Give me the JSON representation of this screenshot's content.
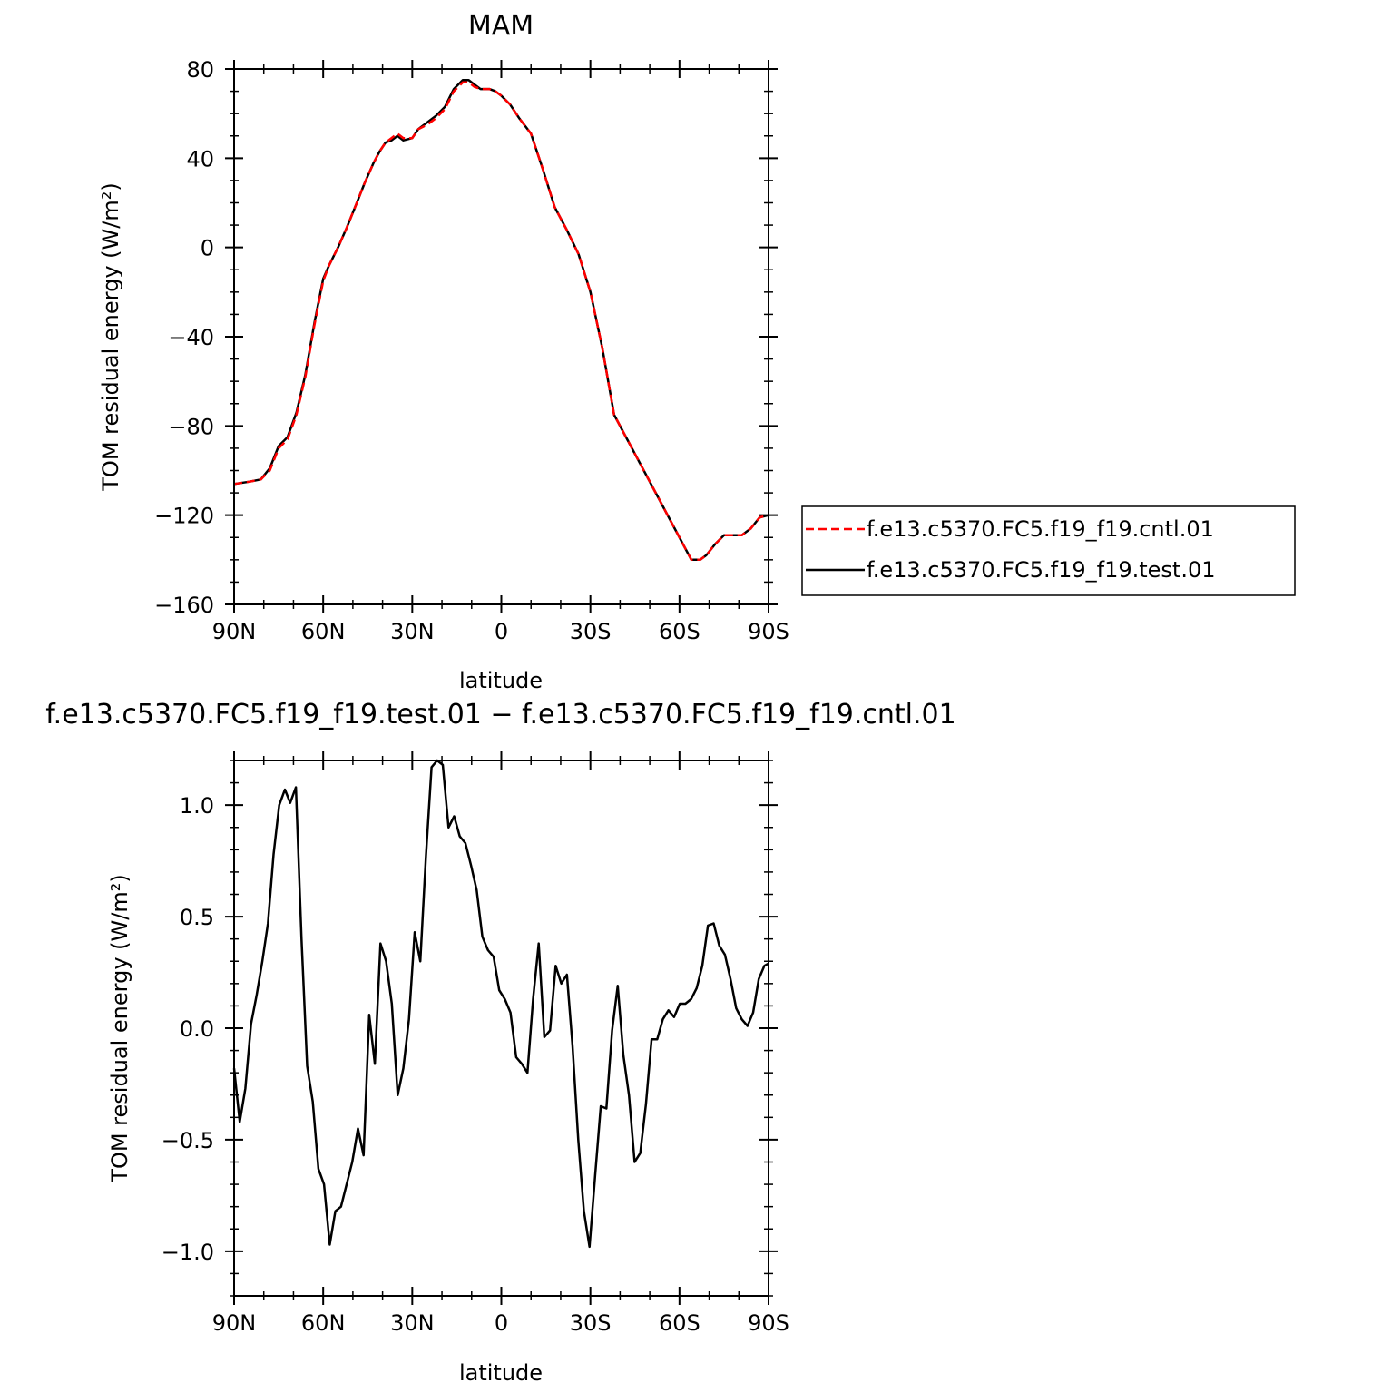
{
  "chart_data": [
    {
      "type": "line",
      "title": "MAM",
      "xlabel": "latitude",
      "ylabel": "TOM residual energy (W/m²)",
      "x_tick_labels": [
        "90N",
        "60N",
        "30N",
        "0",
        "30S",
        "60S",
        "90S"
      ],
      "y_tick_labels": [
        "80",
        "40",
        "0",
        "−40",
        "−80",
        "−120",
        "−160"
      ],
      "x_ticks": [
        90,
        60,
        30,
        0,
        -30,
        -60,
        -90
      ],
      "y_ticks": [
        80,
        40,
        0,
        -40,
        -80,
        -120,
        -160
      ],
      "xlim": [
        90,
        -90
      ],
      "ylim": [
        -160,
        80
      ],
      "legend_position": "right",
      "series": [
        {
          "name": "f.e13.c5370.FC5.f19_f19.cntl.01",
          "color": "#ff0000",
          "dash": "dashed",
          "x": [
            90,
            85,
            81,
            78,
            75,
            72,
            69,
            66,
            63,
            60,
            58,
            55,
            52,
            49,
            46,
            43,
            41,
            39,
            37,
            35,
            33,
            30,
            28,
            25,
            22,
            19,
            16,
            13,
            11,
            9,
            7,
            4,
            2,
            0,
            -3,
            -6,
            -10,
            -14,
            -18,
            -22,
            -26,
            -30,
            -34,
            -38,
            -42,
            -46,
            -52,
            -58,
            -64,
            -67,
            -69,
            -72,
            -75,
            -78,
            -81,
            -84,
            -87,
            -90
          ],
          "y": [
            -106,
            -105,
            -104,
            -100,
            -90,
            -86,
            -75,
            -58,
            -35,
            -15,
            -8,
            0,
            9,
            19,
            29,
            38,
            43,
            47,
            49,
            51,
            49,
            49,
            53,
            55,
            58,
            62,
            70,
            74,
            74,
            72,
            71,
            71,
            70,
            68,
            64,
            58,
            51,
            35,
            18,
            8,
            -3,
            -20,
            -45,
            -75,
            -85,
            -95,
            -110,
            -125,
            -140,
            -140,
            -138,
            -133,
            -129,
            -129,
            -129,
            -126,
            -121,
            -120
          ]
        },
        {
          "name": "f.e13.c5370.FC5.f19_f19.test.01",
          "color": "#000000",
          "dash": "solid",
          "x": [
            90,
            85,
            81,
            78,
            75,
            72,
            69,
            66,
            63,
            60,
            58,
            55,
            52,
            49,
            46,
            43,
            41,
            39,
            37,
            35,
            33,
            30,
            28,
            25,
            22,
            19,
            16,
            13,
            11,
            9,
            7,
            4,
            2,
            0,
            -3,
            -6,
            -10,
            -14,
            -18,
            -22,
            -26,
            -30,
            -34,
            -38,
            -42,
            -46,
            -52,
            -58,
            -64,
            -67,
            -69,
            -72,
            -75,
            -78,
            -81,
            -84,
            -87,
            -90
          ],
          "y": [
            -106,
            -105,
            -104,
            -99,
            -89,
            -85,
            -74,
            -57,
            -34,
            -14,
            -8,
            0,
            9,
            19,
            29,
            38,
            43,
            47,
            48,
            50,
            48,
            49,
            53,
            56,
            59,
            63,
            71,
            75,
            75,
            73,
            71,
            71,
            70,
            68,
            64,
            58,
            51,
            35,
            18,
            8,
            -3,
            -20,
            -45,
            -75,
            -85,
            -95,
            -110,
            -125,
            -140,
            -140,
            -138,
            -133,
            -129,
            -129,
            -129,
            -126,
            -121,
            -120
          ]
        }
      ]
    },
    {
      "type": "line",
      "title": "f.e13.c5370.FC5.f19_f19.test.01 − f.e13.c5370.FC5.f19_f19.cntl.01",
      "xlabel": "latitude",
      "ylabel": "TOM residual energy (W/m²)",
      "x_tick_labels": [
        "90N",
        "60N",
        "30N",
        "0",
        "30S",
        "60S",
        "90S"
      ],
      "y_tick_labels": [
        "1.0",
        "0.5",
        "0.0",
        "−0.5",
        "−1.0"
      ],
      "x_ticks": [
        90,
        60,
        30,
        0,
        -30,
        -60,
        -90
      ],
      "y_ticks": [
        1.0,
        0.5,
        0.0,
        -0.5,
        -1.0
      ],
      "xlim": [
        90,
        -90
      ],
      "ylim": [
        -1.2,
        1.2
      ],
      "series": [
        {
          "color": "#000000",
          "dash": "solid",
          "x": [
            90,
            88.1,
            86.2,
            84.3,
            82.4,
            80.5,
            78.6,
            76.7,
            74.8,
            72.9,
            71.1,
            69.2,
            67.3,
            65.4,
            63.5,
            61.6,
            59.7,
            57.8,
            55.9,
            54.0,
            52.1,
            50.2,
            48.3,
            46.4,
            44.5,
            42.6,
            40.7,
            38.8,
            36.9,
            34.9,
            33.0,
            31.1,
            29.2,
            27.3,
            25.4,
            23.5,
            21.6,
            19.7,
            17.8,
            15.9,
            14.0,
            12.1,
            10.2,
            8.3,
            6.4,
            4.5,
            2.6,
            0.7,
            -1.2,
            -3.1,
            -5.0,
            -6.9,
            -8.8,
            -10.7,
            -12.6,
            -14.5,
            -16.4,
            -18.3,
            -20.2,
            -22.1,
            -24.0,
            -25.9,
            -27.8,
            -29.7,
            -31.6,
            -33.5,
            -35.4,
            -37.3,
            -39.2,
            -41.1,
            -43.0,
            -44.9,
            -46.8,
            -48.7,
            -50.6,
            -52.5,
            -54.4,
            -56.3,
            -58.2,
            -60.1,
            -62.0,
            -63.9,
            -65.8,
            -67.7,
            -69.6,
            -71.5,
            -73.4,
            -75.3,
            -77.2,
            -79.1,
            -81.0,
            -82.9,
            -84.8,
            -86.7,
            -88.6,
            -90.0
          ],
          "y": [
            -0.18,
            -0.42,
            -0.27,
            0.02,
            0.15,
            0.3,
            0.47,
            0.78,
            1.0,
            1.07,
            1.01,
            1.08,
            0.4,
            -0.17,
            -0.33,
            -0.63,
            -0.7,
            -0.97,
            -0.82,
            -0.8,
            -0.7,
            -0.6,
            -0.45,
            -0.57,
            0.06,
            -0.16,
            0.38,
            0.3,
            0.11,
            -0.3,
            -0.18,
            0.04,
            0.43,
            0.3,
            0.77,
            1.17,
            1.2,
            1.18,
            0.9,
            0.95,
            0.86,
            0.83,
            0.73,
            0.62,
            0.41,
            0.35,
            0.32,
            0.17,
            0.13,
            0.07,
            -0.13,
            -0.16,
            -0.2,
            0.13,
            0.38,
            -0.04,
            -0.01,
            0.28,
            0.2,
            0.24,
            -0.08,
            -0.5,
            -0.82,
            -0.98,
            -0.66,
            -0.35,
            -0.36,
            -0.01,
            0.19,
            -0.12,
            -0.3,
            -0.6,
            -0.56,
            -0.34,
            -0.05,
            -0.05,
            0.04,
            0.08,
            0.05,
            0.11,
            0.11,
            0.13,
            0.18,
            0.28,
            0.46,
            0.47,
            0.37,
            0.33,
            0.22,
            0.09,
            0.04,
            0.01,
            0.07,
            0.22,
            0.28,
            0.29
          ]
        }
      ]
    }
  ]
}
